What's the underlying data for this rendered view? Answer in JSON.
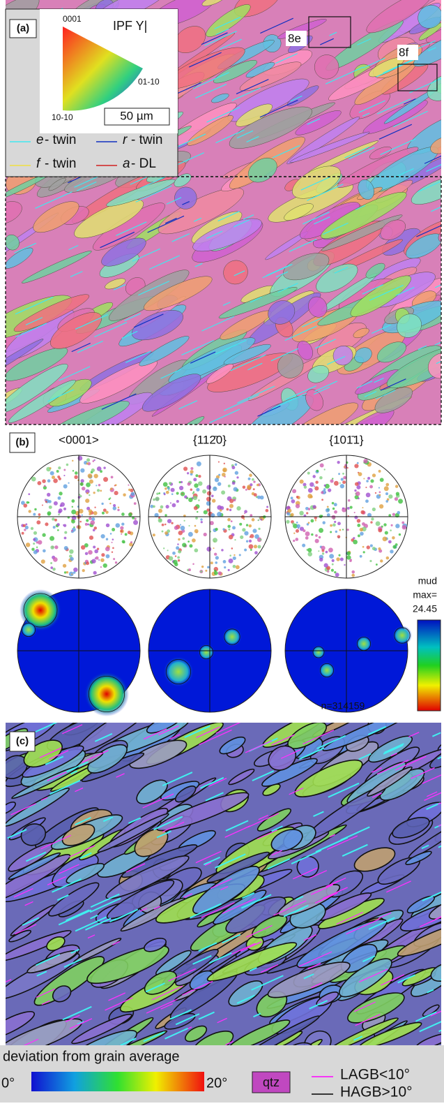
{
  "panel_a": {
    "label": "(a)",
    "ipf_title": "IPF Y|",
    "ipf_corners": [
      "0001",
      "01-10",
      "10-10"
    ],
    "scale_bar": "50 µm",
    "legend": [
      {
        "symbol": "e",
        "text": "- twin",
        "color": "#40e8f0"
      },
      {
        "symbol": "r",
        "text": "- twin",
        "color": "#1030c0"
      },
      {
        "symbol": "f",
        "text": "- twin",
        "color": "#f0e040"
      },
      {
        "symbol": "a",
        "text": "- DL",
        "color": "#d02020"
      }
    ],
    "insets": [
      "8e",
      "8f"
    ]
  },
  "panel_b": {
    "label": "(b)",
    "columns": [
      "<0001>",
      "{112̄0}",
      "{101̄1}"
    ],
    "colorbar_title": "mud",
    "max_label": "max=",
    "max": 24.45,
    "n_label": "n=314159"
  },
  "panel_c": {
    "label": "(c)",
    "legend_title": "deviation from grain average",
    "scale_min": "0°",
    "scale_max": "20°",
    "phase": "qtz",
    "boundaries": [
      {
        "text": "LAGB<10°",
        "color": "#ff00ff"
      },
      {
        "text": "HAGB>10°",
        "color": "#000000"
      }
    ]
  }
}
